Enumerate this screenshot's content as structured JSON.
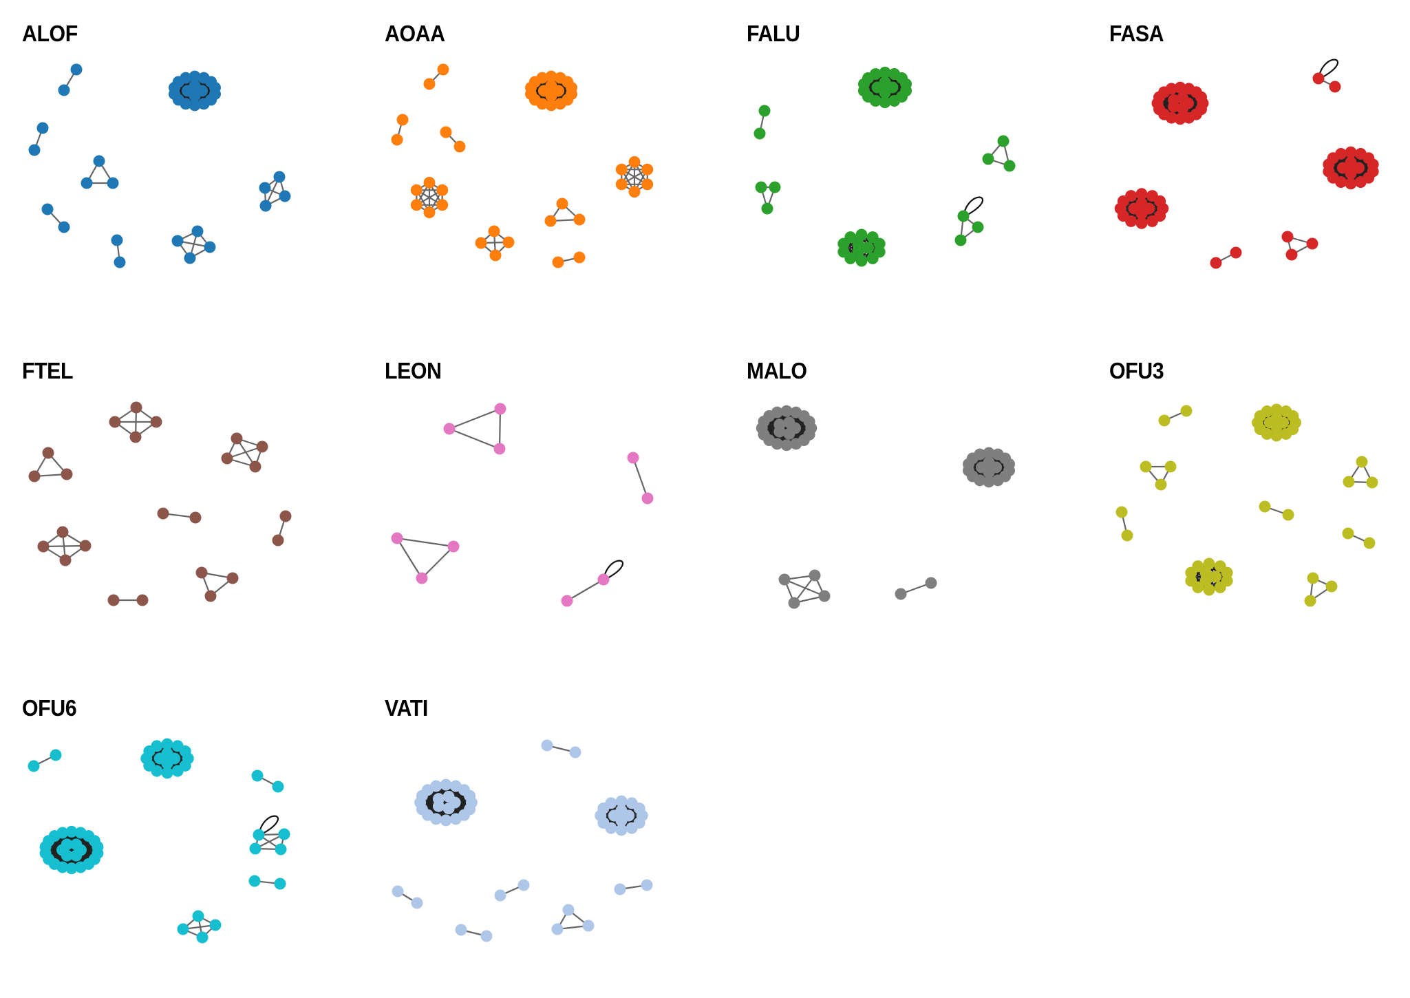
{
  "panels": [
    {
      "title": "ALOF",
      "color": "#1f77b4"
    },
    {
      "title": "AOAA",
      "color": "#ff7f0e"
    },
    {
      "title": "FALU",
      "color": "#2ca02c"
    },
    {
      "title": "FASA",
      "color": "#d62728"
    },
    {
      "title": "FTEL",
      "color": "#8c564b"
    },
    {
      "title": "LEON",
      "color": "#e377c2"
    },
    {
      "title": "MALO",
      "color": "#7f7f7f"
    },
    {
      "title": "OFU3",
      "color": "#bcbd22"
    },
    {
      "title": "OFU6",
      "color": "#17becf"
    },
    {
      "title": "VATI",
      "color": "#aec7e8"
    }
  ]
}
